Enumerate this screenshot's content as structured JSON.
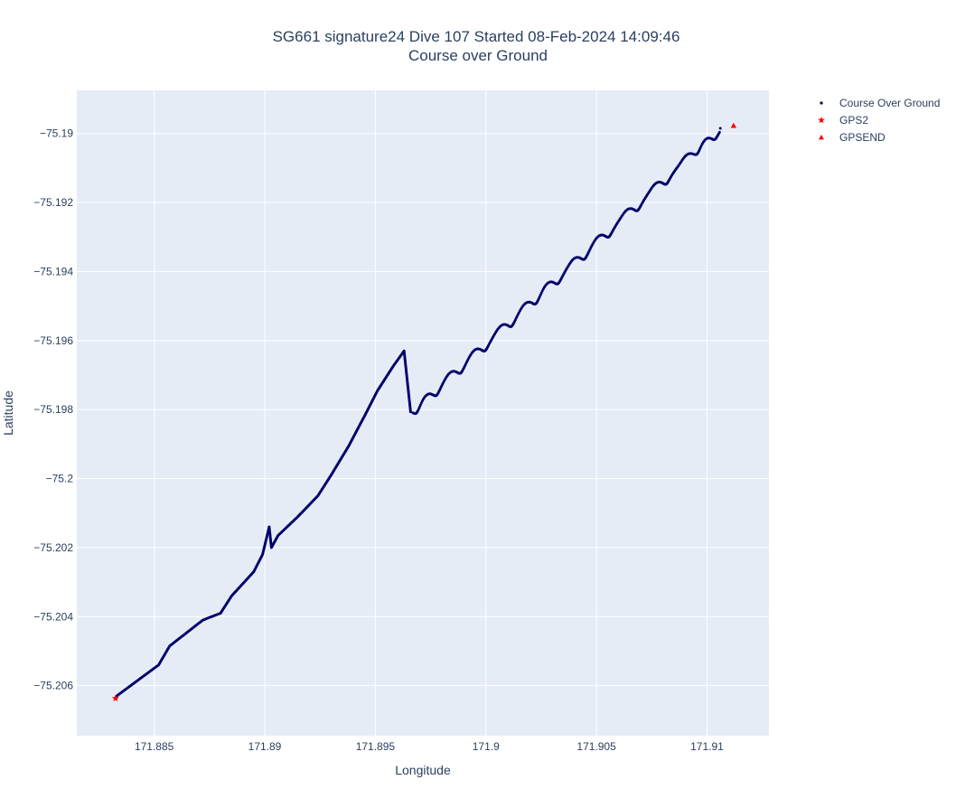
{
  "chart_data": {
    "type": "scatter",
    "title_line1": "SG661 signature24 Dive 107 Started 08-Feb-2024 14:09:46",
    "title_line2": "Course over Ground",
    "xlabel": "Longitude",
    "ylabel": "Latitude",
    "xlim": [
      171.8815,
      171.9128
    ],
    "ylim": [
      -75.20745,
      -75.18875
    ],
    "x_ticks": [
      171.885,
      171.89,
      171.895,
      171.9,
      171.905,
      171.91
    ],
    "x_tick_labels": [
      "171.885",
      "171.89",
      "171.895",
      "171.9",
      "171.905",
      "171.91"
    ],
    "y_ticks": [
      -75.19,
      -75.192,
      -75.194,
      -75.196,
      -75.198,
      -75.2,
      -75.202,
      -75.204,
      -75.206
    ],
    "y_tick_labels": [
      "−75.19",
      "−75.192",
      "−75.194",
      "−75.196",
      "−75.198",
      "−75.2",
      "−75.202",
      "−75.204",
      "−75.206"
    ],
    "grid": true,
    "legend_position": "top-right, outside plot",
    "colors": {
      "plot_bg": "#e5ecf6",
      "grid": "#ffffff",
      "course": "#00006b",
      "gps": "#ff0000",
      "text": "#2a3f5f"
    },
    "series": [
      {
        "name": "Course Over Ground",
        "marker": "dot",
        "color": "#00006b",
        "path_knots": [
          [
            171.8833,
            -75.2063
          ],
          [
            171.8852,
            -75.2054
          ],
          [
            171.8857,
            -75.20485
          ],
          [
            171.8872,
            -75.2041
          ],
          [
            171.888,
            -75.2039
          ],
          [
            171.8885,
            -75.2034
          ],
          [
            171.8895,
            -75.2027
          ],
          [
            171.8899,
            -75.2022
          ],
          [
            171.8902,
            -75.2014
          ],
          [
            171.8903,
            -75.202
          ],
          [
            171.8906,
            -75.20165
          ],
          [
            171.8915,
            -75.2011
          ],
          [
            171.8924,
            -75.2005
          ],
          [
            171.893,
            -75.1999
          ],
          [
            171.8938,
            -75.19905
          ],
          [
            171.8945,
            -75.1982
          ],
          [
            171.8951,
            -75.19745
          ],
          [
            171.8958,
            -75.19675
          ],
          [
            171.8963,
            -75.1963
          ],
          [
            171.8966,
            -75.1981
          ],
          [
            171.9106,
            -75.18985
          ]
        ],
        "wiggle_longitudes": [
          171.8966,
          171.8975,
          171.8986,
          171.8997,
          171.9009,
          171.902,
          171.903,
          171.9042,
          171.9053,
          171.9066,
          171.9079,
          171.9093,
          171.9101
        ]
      },
      {
        "name": "GPS2",
        "marker": "star",
        "color": "#ff0000",
        "x": [
          171.88325
        ],
        "y": [
          -75.20637
        ]
      },
      {
        "name": "GPSEND",
        "marker": "triangle-up",
        "color": "#ff0000",
        "x": [
          171.9112
        ],
        "y": [
          -75.18977
        ]
      }
    ]
  }
}
